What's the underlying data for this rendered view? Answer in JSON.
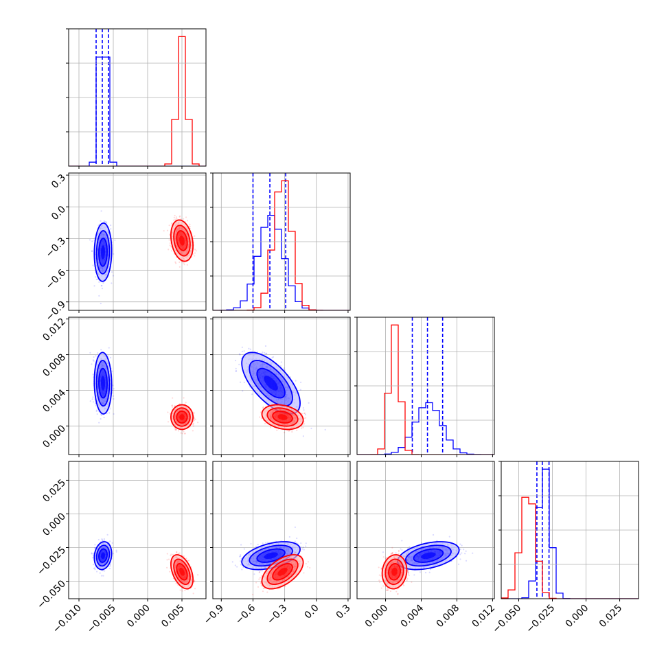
{
  "chart_data": {
    "type": "corner",
    "colors": {
      "blue": "#0000ff",
      "red": "#ff0000"
    },
    "grid": true,
    "parameters": [
      {
        "range": [
          -0.0115,
          0.0085
        ],
        "ticks": [
          -0.01,
          -0.005,
          0.0,
          0.005
        ],
        "tick_labels": [
          "−0.010",
          "−0.005",
          "0.000",
          "0.005"
        ]
      },
      {
        "range": [
          -0.98,
          0.32
        ],
        "ticks": [
          -0.9,
          -0.6,
          -0.3,
          0.0,
          0.3
        ],
        "tick_labels": [
          "−0.9",
          "−0.6",
          "−0.3",
          "0.0",
          "0.3"
        ]
      },
      {
        "range": [
          -0.0032,
          0.0122
        ],
        "ticks": [
          0.0,
          0.004,
          0.008,
          0.012
        ],
        "tick_labels": [
          "0.000",
          "0.004",
          "0.008",
          "0.012"
        ]
      },
      {
        "range": [
          -0.063,
          0.039
        ],
        "ticks": [
          -0.05,
          -0.025,
          0.0,
          0.025
        ],
        "tick_labels": [
          "−0.050",
          "−0.025",
          "0.000",
          "0.025"
        ]
      }
    ],
    "series": [
      {
        "color_key": "blue",
        "means": [
          -0.0065,
          -0.43,
          0.0048,
          -0.031
        ],
        "stds": [
          0.00055,
          0.12,
          0.0015,
          0.0045
        ],
        "quantiles": [
          [
            -0.0075,
            -0.0066,
            -0.0057
          ],
          [
            -0.6,
            -0.44,
            -0.29
          ],
          [
            0.003,
            0.0047,
            0.0064
          ],
          [
            -0.0365,
            -0.0325,
            -0.0275
          ]
        ],
        "correlations": [
          [
            0,
            1,
            0.05
          ],
          [
            0,
            2,
            -0.05
          ],
          [
            0,
            3,
            0.15
          ],
          [
            1,
            2,
            -0.65
          ],
          [
            1,
            3,
            0.45
          ],
          [
            2,
            3,
            0.4
          ]
        ]
      },
      {
        "color_key": "red",
        "means": [
          0.005,
          -0.32,
          0.001,
          -0.043
        ],
        "stds": [
          0.0007,
          0.085,
          0.0006,
          0.0055
        ],
        "quantiles": null,
        "correlations": [
          [
            0,
            1,
            -0.25
          ],
          [
            0,
            2,
            0.0
          ],
          [
            0,
            3,
            -0.45
          ],
          [
            1,
            2,
            -0.25
          ],
          [
            1,
            3,
            0.55
          ],
          [
            2,
            3,
            0.1
          ]
        ]
      }
    ]
  }
}
